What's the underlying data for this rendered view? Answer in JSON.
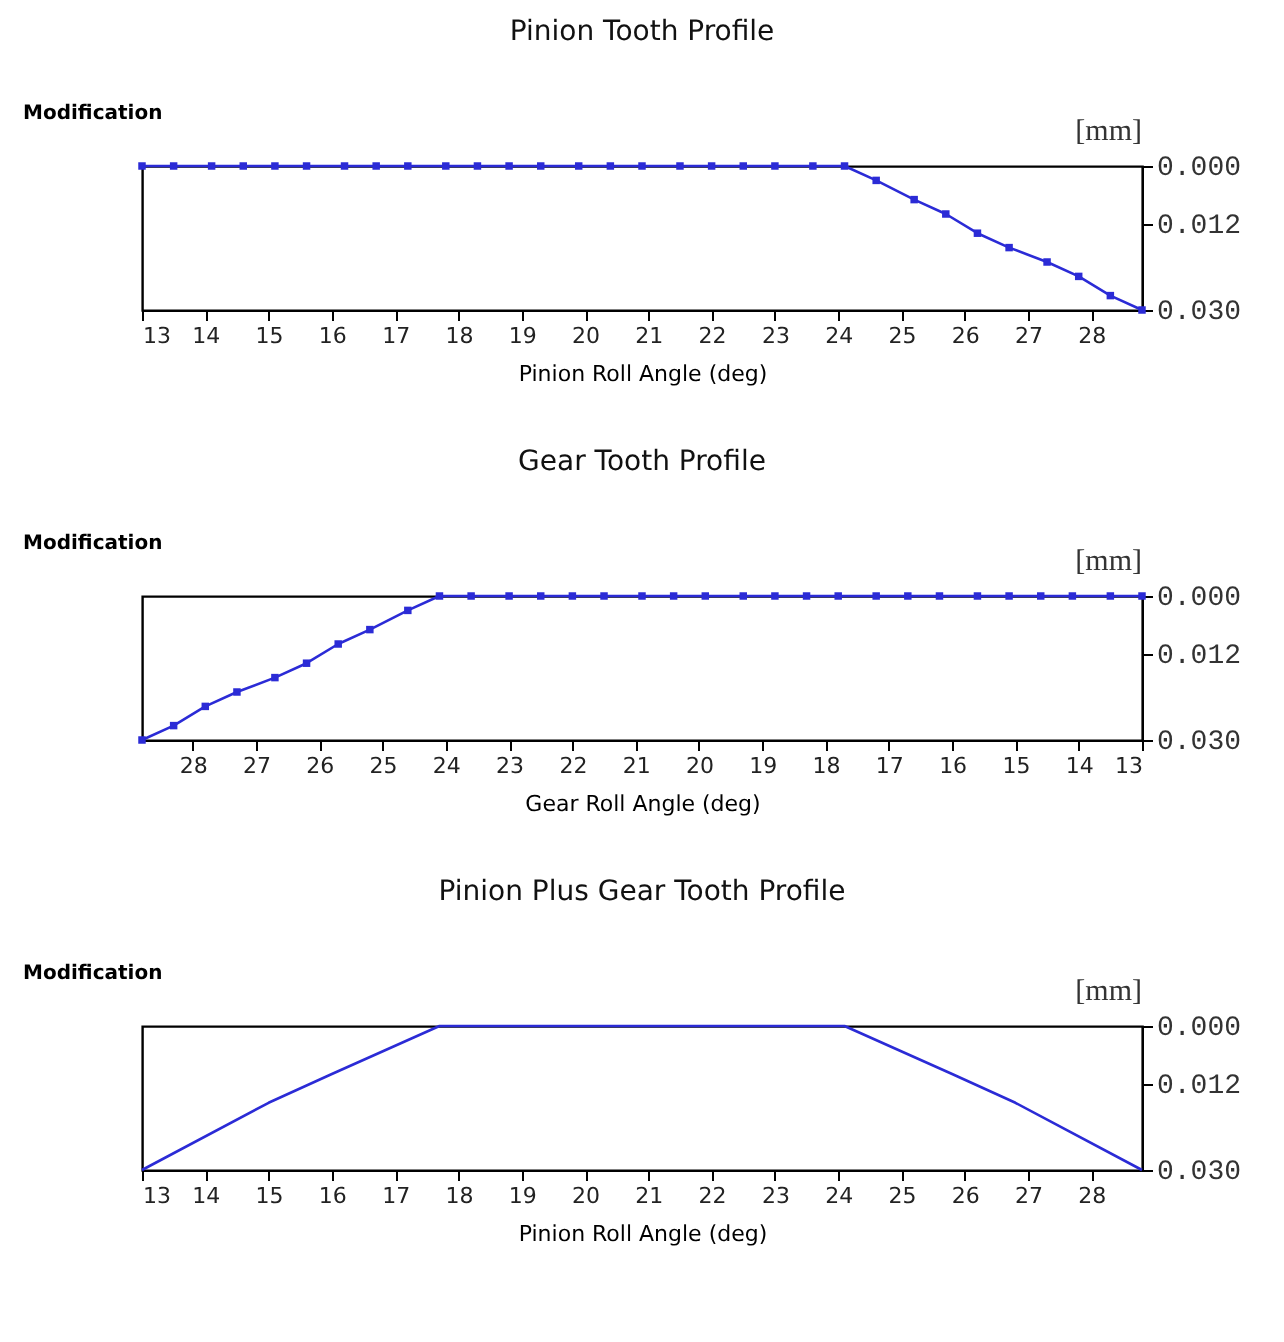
{
  "chart_data": [
    {
      "type": "line",
      "title": "Pinion Tooth Profile",
      "xlabel": "Pinion Roll Angle (deg)",
      "ylabel": "Modification",
      "annotations": [
        "[mm]"
      ],
      "x": [
        13,
        13.5,
        14.1,
        14.6,
        15.1,
        15.6,
        16.2,
        16.7,
        17.2,
        17.8,
        18.3,
        18.8,
        19.3,
        19.9,
        20.4,
        20.9,
        21.5,
        22.0,
        22.5,
        23.0,
        23.6,
        24.1,
        24.6,
        25.2,
        25.7,
        26.2,
        26.7,
        27.3,
        27.8,
        28.3,
        28.8
      ],
      "series": [
        {
          "color": "#2b2bd6",
          "values": [
            0,
            0,
            0,
            0,
            0,
            0,
            0,
            0,
            0,
            0,
            0,
            0,
            0,
            0,
            0,
            0,
            0,
            0,
            0,
            0,
            0,
            0,
            0.003,
            0.007,
            0.01,
            0.014,
            0.017,
            0.02,
            0.023,
            0.027,
            0.03
          ]
        }
      ],
      "xlim": [
        13,
        28.8
      ],
      "xticks": [
        13,
        14,
        15,
        16,
        17,
        18,
        19,
        20,
        21,
        22,
        23,
        24,
        25,
        26,
        27,
        28
      ],
      "ylim": [
        0.03,
        0
      ],
      "yticks": [
        {
          "value": 0,
          "label": "0.000"
        },
        {
          "value": 0.012,
          "label": "0.012"
        },
        {
          "value": 0.03,
          "label": "0.030"
        }
      ],
      "grid": false,
      "marker": "square",
      "line_style": "solid"
    },
    {
      "type": "line",
      "title": "Gear Tooth Profile",
      "xlabel": "Gear Roll Angle (deg)",
      "ylabel": "Modification",
      "annotations": [
        "[mm]"
      ],
      "x": [
        13,
        13.5,
        14.1,
        14.6,
        15.1,
        15.6,
        16.2,
        16.7,
        17.2,
        17.8,
        18.3,
        18.8,
        19.3,
        19.9,
        20.4,
        20.9,
        21.5,
        22.0,
        22.5,
        23.0,
        23.6,
        24.1,
        24.6,
        25.2,
        25.7,
        26.2,
        26.7,
        27.3,
        27.8,
        28.3,
        28.8
      ],
      "series": [
        {
          "color": "#2b2bd6",
          "values": [
            0,
            0,
            0,
            0,
            0,
            0,
            0,
            0,
            0,
            0,
            0,
            0,
            0,
            0,
            0,
            0,
            0,
            0,
            0,
            0,
            0,
            0,
            0.003,
            0.007,
            0.01,
            0.014,
            0.017,
            0.02,
            0.023,
            0.027,
            0.03
          ]
        }
      ],
      "xlim": [
        28.8,
        13
      ],
      "xticks": [
        28,
        27,
        26,
        25,
        24,
        23,
        22,
        21,
        20,
        19,
        18,
        17,
        16,
        15,
        14,
        13
      ],
      "ylim": [
        0.03,
        0
      ],
      "yticks": [
        {
          "value": 0,
          "label": "0.000"
        },
        {
          "value": 0.012,
          "label": "0.012"
        },
        {
          "value": 0.03,
          "label": "0.030"
        }
      ],
      "grid": false,
      "marker": "square",
      "line_style": "solid"
    },
    {
      "type": "line",
      "title": "Pinion Plus Gear Tooth Profile",
      "xlabel": "Pinion Roll Angle (deg)",
      "ylabel": "Modification",
      "annotations": [
        "[mm]"
      ],
      "x": [
        13,
        15,
        16,
        17.7,
        24.1,
        25.8,
        26.8,
        28.8
      ],
      "series": [
        {
          "color": "#2b2bd6",
          "values": [
            0.03,
            0.016,
            0.01,
            0,
            0,
            0.01,
            0.016,
            0.03
          ]
        }
      ],
      "xlim": [
        13,
        28.8
      ],
      "xticks": [
        13,
        14,
        15,
        16,
        17,
        18,
        19,
        20,
        21,
        22,
        23,
        24,
        25,
        26,
        27,
        28
      ],
      "ylim": [
        0.03,
        0
      ],
      "yticks": [
        {
          "value": 0,
          "label": "0.000"
        },
        {
          "value": 0.012,
          "label": "0.012"
        },
        {
          "value": 0.03,
          "label": "0.030"
        }
      ],
      "grid": false,
      "marker": "none",
      "line_style": "solid"
    }
  ]
}
